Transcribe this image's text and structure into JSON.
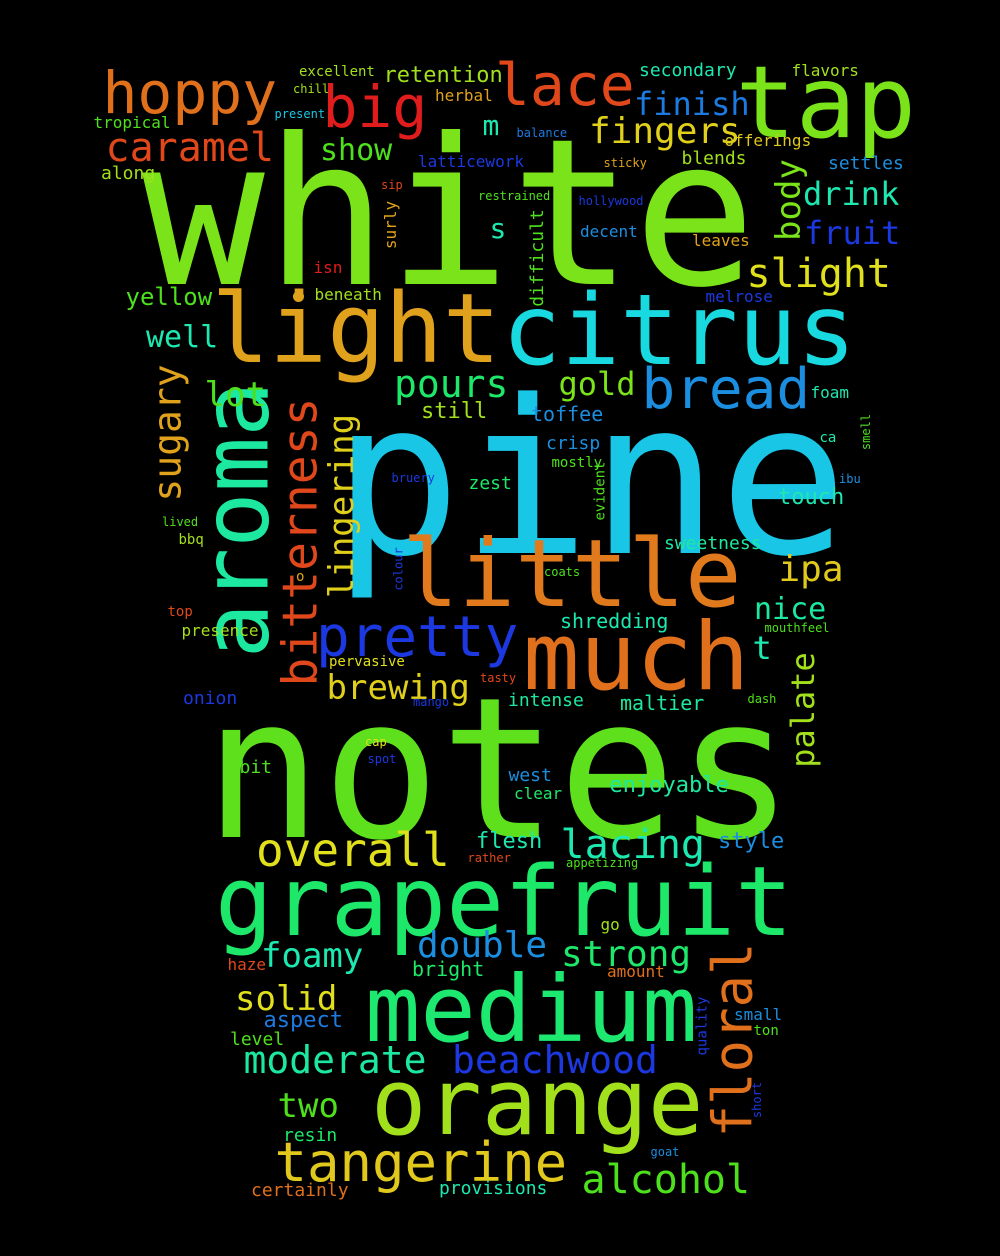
{
  "words": [
    {
      "text": "white",
      "color": "#7be31a"
    },
    {
      "text": "pine",
      "color": "#19c6e6"
    },
    {
      "text": "notes",
      "color": "#5ee01c"
    },
    {
      "text": "tap",
      "color": "#7be31a"
    },
    {
      "text": "light",
      "color": "#e0a21c"
    },
    {
      "text": "citrus",
      "color": "#19d9e0"
    },
    {
      "text": "aroma",
      "color": "#1de8a0"
    },
    {
      "text": "little",
      "color": "#e07a1c"
    },
    {
      "text": "much",
      "color": "#e0701c"
    },
    {
      "text": "grapefruit",
      "color": "#1de86a"
    },
    {
      "text": "medium",
      "color": "#1de870"
    },
    {
      "text": "orange",
      "color": "#a2e01c"
    },
    {
      "text": "hoppy",
      "color": "#e0701c"
    },
    {
      "text": "big",
      "color": "#e01c1c"
    },
    {
      "text": "lace",
      "color": "#e0481c"
    },
    {
      "text": "caramel",
      "color": "#e0481c"
    },
    {
      "text": "fingers",
      "color": "#e0d01c"
    },
    {
      "text": "finish",
      "color": "#1c7ae0"
    },
    {
      "text": "bread",
      "color": "#1c8ee0"
    },
    {
      "text": "bitterness",
      "color": "#e0481c"
    },
    {
      "text": "pretty",
      "color": "#1c38e0"
    },
    {
      "text": "overall",
      "color": "#e0e01c"
    },
    {
      "text": "lacing",
      "color": "#1de8b0"
    },
    {
      "text": "tangerine",
      "color": "#e0c81c"
    },
    {
      "text": "floral",
      "color": "#e0701c"
    },
    {
      "text": "beachwood",
      "color": "#1c38e0"
    },
    {
      "text": "alcohol",
      "color": "#4ee01c"
    },
    {
      "text": "moderate",
      "color": "#1de8a0"
    },
    {
      "text": "sugary",
      "color": "#e0a21c"
    },
    {
      "text": "lingering",
      "color": "#e0d01c"
    },
    {
      "text": "slight",
      "color": "#e0e01c"
    },
    {
      "text": "body",
      "color": "#7be31a"
    },
    {
      "text": "drink",
      "color": "#1de8b0"
    },
    {
      "text": "fruit",
      "color": "#1c38e0"
    },
    {
      "text": "pours",
      "color": "#1de86a"
    },
    {
      "text": "gold",
      "color": "#7be31a"
    },
    {
      "text": "ipa",
      "color": "#e0c81c"
    },
    {
      "text": "nice",
      "color": "#1de8a0"
    },
    {
      "text": "palate",
      "color": "#a2e01c"
    },
    {
      "text": "brewing",
      "color": "#e0d01c"
    },
    {
      "text": "double",
      "color": "#1c8ee0"
    },
    {
      "text": "strong",
      "color": "#1de86a"
    },
    {
      "text": "foamy",
      "color": "#1de8b0"
    },
    {
      "text": "solid",
      "color": "#e0e01c"
    },
    {
      "text": "two",
      "color": "#4ee01c"
    },
    {
      "text": "yellow",
      "color": "#4ee01c"
    },
    {
      "text": "well",
      "color": "#1de8b0"
    },
    {
      "text": "lot",
      "color": "#4ee01c"
    },
    {
      "text": "show",
      "color": "#4ee01c"
    },
    {
      "text": "retention",
      "color": "#a2e01c"
    },
    {
      "text": "secondary",
      "color": "#1de8b0"
    },
    {
      "text": "flavors",
      "color": "#a2e01c"
    },
    {
      "text": "offerings",
      "color": "#e0c81c"
    },
    {
      "text": "settles",
      "color": "#1c8ee0"
    },
    {
      "text": "blends",
      "color": "#a2e01c"
    },
    {
      "text": "m",
      "color": "#1de8b0"
    },
    {
      "text": "s",
      "color": "#1de8b0"
    },
    {
      "text": "t",
      "color": "#1de8b0"
    },
    {
      "text": "o",
      "color": "#e0a21c"
    },
    {
      "text": "toffee",
      "color": "#1c8ee0"
    },
    {
      "text": "still",
      "color": "#a2e01c"
    },
    {
      "text": "crisp",
      "color": "#1c8ee0"
    },
    {
      "text": "mostly",
      "color": "#4ee01c"
    },
    {
      "text": "zest",
      "color": "#1de86a"
    },
    {
      "text": "touch",
      "color": "#1de8b0"
    },
    {
      "text": "sweetness",
      "color": "#1de8a0"
    },
    {
      "text": "shredding",
      "color": "#1de8b0"
    },
    {
      "text": "maltier",
      "color": "#1de8a0"
    },
    {
      "text": "intense",
      "color": "#1de8a0"
    },
    {
      "text": "enjoyable",
      "color": "#1de8a0"
    },
    {
      "text": "west",
      "color": "#1c8ee0"
    },
    {
      "text": "clear",
      "color": "#1de86a"
    },
    {
      "text": "flesh",
      "color": "#1de8b0"
    },
    {
      "text": "style",
      "color": "#1c8ee0"
    },
    {
      "text": "bright",
      "color": "#1de86a"
    },
    {
      "text": "aspect",
      "color": "#1c7ae0"
    },
    {
      "text": "level",
      "color": "#4ee01c"
    },
    {
      "text": "resin",
      "color": "#1de86a"
    },
    {
      "text": "provisions",
      "color": "#1de8b0"
    },
    {
      "text": "certainly",
      "color": "#e0701c"
    },
    {
      "text": "excellent",
      "color": "#a2e01c"
    },
    {
      "text": "chill",
      "color": "#a2e01c"
    },
    {
      "text": "present",
      "color": "#19c6e6"
    },
    {
      "text": "tropical",
      "color": "#4ee01c"
    },
    {
      "text": "along",
      "color": "#a2e01c"
    },
    {
      "text": "herbal",
      "color": "#e0a21c"
    },
    {
      "text": "balance",
      "color": "#1c7ae0"
    },
    {
      "text": "sticky",
      "color": "#e0a21c"
    },
    {
      "text": "latticework",
      "color": "#1c38e0"
    },
    {
      "text": "restrained",
      "color": "#4ee01c"
    },
    {
      "text": "hollywood",
      "color": "#1c38e0"
    },
    {
      "text": "sip",
      "color": "#e0481c"
    },
    {
      "text": "surly",
      "color": "#e0a21c"
    },
    {
      "text": "difficult",
      "color": "#4ee01c"
    },
    {
      "text": "decent",
      "color": "#1c8ee0"
    },
    {
      "text": "leaves",
      "color": "#e0a21c"
    },
    {
      "text": "isn",
      "color": "#e01c1c"
    },
    {
      "text": "beneath",
      "color": "#a2e01c"
    },
    {
      "text": "melrose",
      "color": "#1c38e0"
    },
    {
      "text": "foam",
      "color": "#1de8b0"
    },
    {
      "text": "ca",
      "color": "#1de8b0"
    },
    {
      "text": "smell",
      "color": "#4ee01c"
    },
    {
      "text": "ibu",
      "color": "#1c8ee0"
    },
    {
      "text": "bruery",
      "color": "#1c38e0"
    },
    {
      "text": "evident",
      "color": "#4ee01c"
    },
    {
      "text": "lived",
      "color": "#4ee01c"
    },
    {
      "text": "bbq",
      "color": "#a2e01c"
    },
    {
      "text": "colour",
      "color": "#1c38e0"
    },
    {
      "text": "coats",
      "color": "#4ee01c"
    },
    {
      "text": "top",
      "color": "#e0481c"
    },
    {
      "text": "presence",
      "color": "#a2e01c"
    },
    {
      "text": "mouthfeel",
      "color": "#4ee01c"
    },
    {
      "text": "pervasive",
      "color": "#e0e01c"
    },
    {
      "text": "tasty",
      "color": "#e0481c"
    },
    {
      "text": "onion",
      "color": "#1c38e0"
    },
    {
      "text": "mango",
      "color": "#1c38e0"
    },
    {
      "text": "dash",
      "color": "#4ee01c"
    },
    {
      "text": "cap",
      "color": "#e0e01c"
    },
    {
      "text": "spot",
      "color": "#1c38e0"
    },
    {
      "text": "bit",
      "color": "#4ee01c"
    },
    {
      "text": "rather",
      "color": "#e0481c"
    },
    {
      "text": "appetizing",
      "color": "#4ee01c"
    },
    {
      "text": "go",
      "color": "#a2e01c"
    },
    {
      "text": "haze",
      "color": "#e0481c"
    },
    {
      "text": "amount",
      "color": "#e0701c"
    },
    {
      "text": "quality",
      "color": "#1c38e0"
    },
    {
      "text": "small",
      "color": "#1c8ee0"
    },
    {
      "text": "ton",
      "color": "#4ee01c"
    },
    {
      "text": "short",
      "color": "#1c38e0"
    },
    {
      "text": "goat",
      "color": "#1c8ee0"
    }
  ]
}
